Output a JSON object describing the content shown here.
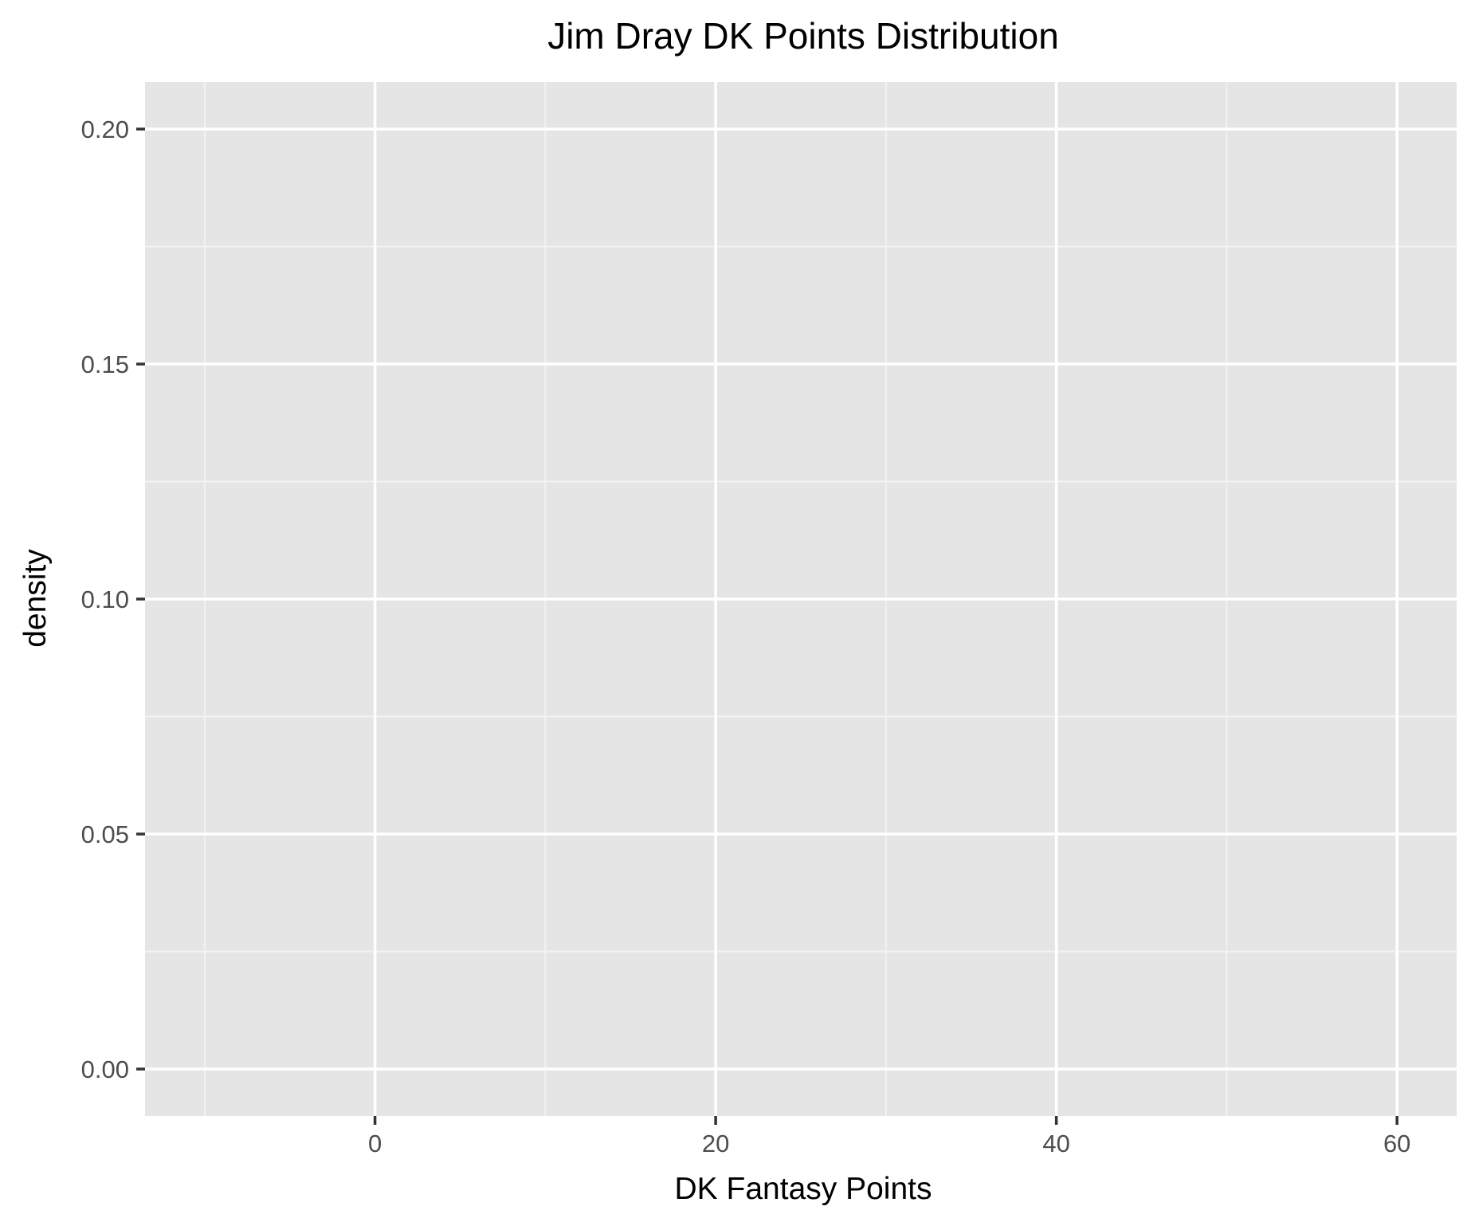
{
  "chart_data": {
    "type": "area",
    "title": "Jim Dray DK Points Distribution",
    "xlabel": "DK Fantasy Points",
    "ylabel": "density",
    "xlim": [
      -13.5,
      63.5
    ],
    "ylim": [
      -0.01,
      0.21
    ],
    "x_major_ticks": [
      0,
      20,
      40,
      60
    ],
    "x_tick_labels": [
      "0",
      "20",
      "40",
      "60"
    ],
    "x_minor_ticks": [
      -10,
      10,
      30,
      50
    ],
    "y_major_ticks": [
      0.0,
      0.05,
      0.1,
      0.15,
      0.2
    ],
    "y_tick_labels": [
      "0.00",
      "0.05",
      "0.10",
      "0.15",
      "0.20"
    ],
    "y_minor_ticks": [
      0.025,
      0.075,
      0.125,
      0.175
    ],
    "series": [],
    "grid": true,
    "colors": {
      "panel_background": "#e5e5e5",
      "grid_major": "#ffffff",
      "grid_minor": "#f2f2f2",
      "tick_label": "#4d4d4d",
      "tick_mark": "#333333",
      "title": "#000000"
    }
  }
}
